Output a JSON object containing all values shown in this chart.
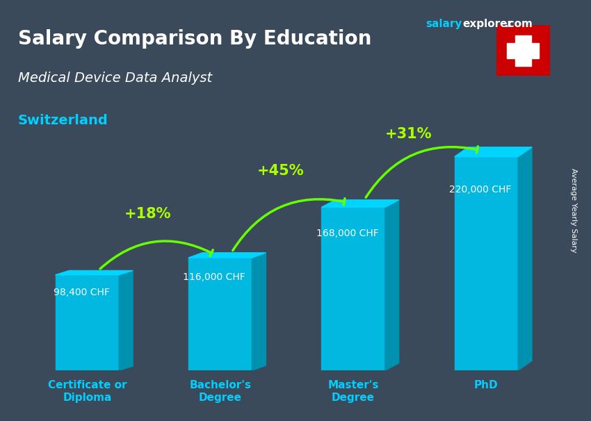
{
  "title": "Salary Comparison By Education",
  "subtitle": "Medical Device Data Analyst",
  "country": "Switzerland",
  "watermark": "salaryexplorer.com",
  "ylabel": "Average Yearly Salary",
  "categories": [
    "Certificate or\nDiploma",
    "Bachelor's\nDegree",
    "Master's\nDegree",
    "PhD"
  ],
  "values": [
    98400,
    116000,
    168000,
    220000
  ],
  "value_labels": [
    "98,400 CHF",
    "116,000 CHF",
    "168,000 CHF",
    "220,000 CHF"
  ],
  "pct_changes": [
    "+18%",
    "+45%",
    "+31%"
  ],
  "bar_color_top": "#00d4ff",
  "bar_color_face": "#00b8e0",
  "bar_color_side": "#0090b0",
  "arrow_color": "#66ff00",
  "title_color": "#ffffff",
  "subtitle_color": "#ffffff",
  "country_color": "#00cfff",
  "watermark_salary_color": "#00cfff",
  "watermark_explorer_color": "#ffffff",
  "bg_color": "#3a4a5a",
  "ylabel_color": "#ffffff",
  "value_label_color": "#ffffff",
  "pct_color": "#aaff00",
  "xtick_color": "#00cfff",
  "ylim": [
    0,
    260000
  ],
  "figsize": [
    8.5,
    6.06
  ],
  "dpi": 100
}
